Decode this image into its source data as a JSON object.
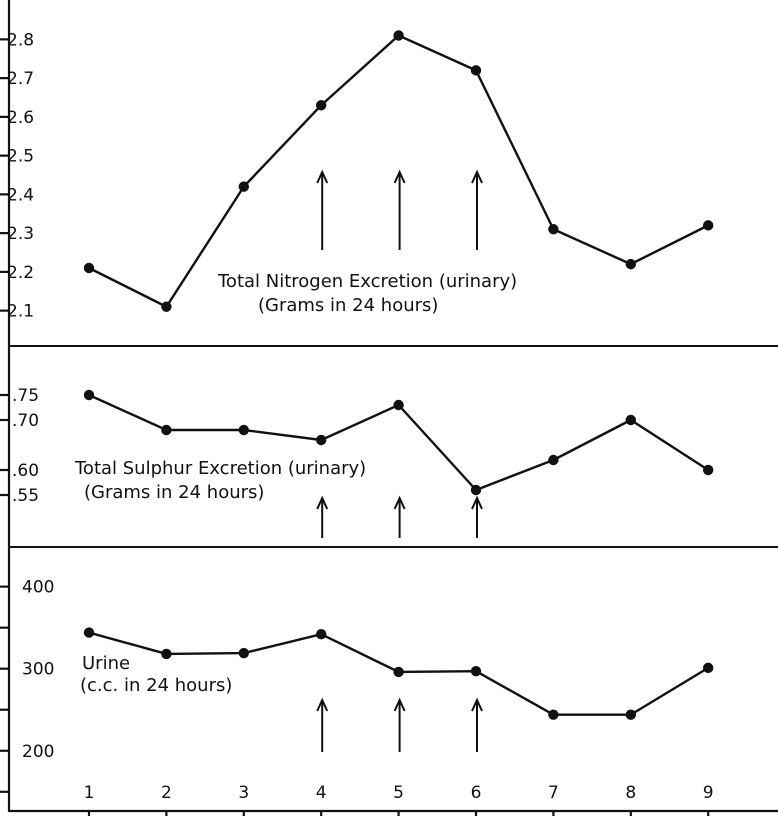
{
  "chart_data": [
    {
      "type": "line",
      "title": "",
      "caption_lines": [
        "Total Nitrogen Excretion (urinary)",
        "(Grams in 24 hours)"
      ],
      "x": [
        1,
        2,
        3,
        4,
        5,
        6,
        7,
        8,
        9
      ],
      "values": [
        2.21,
        2.11,
        2.42,
        2.63,
        2.81,
        2.72,
        2.31,
        2.22,
        2.32
      ],
      "ylim": [
        2.05,
        2.85
      ],
      "yticks": [
        2.1,
        2.2,
        2.3,
        2.4,
        2.5,
        2.6,
        2.7,
        2.8
      ],
      "ytick_labels": [
        "2.1",
        "2.2",
        "2.3",
        "2.4",
        "2.5",
        "2.6",
        "2.7",
        "2.8"
      ],
      "arrows_at": [
        4,
        5,
        6
      ],
      "grid": false
    },
    {
      "type": "line",
      "title": "",
      "caption_lines": [
        "Total Sulphur Excretion (urinary)",
        "(Grams in 24 hours)"
      ],
      "x": [
        1,
        2,
        3,
        4,
        5,
        6,
        7,
        8,
        9
      ],
      "values": [
        0.75,
        0.68,
        0.68,
        0.66,
        0.73,
        0.56,
        0.62,
        0.7,
        0.6
      ],
      "ylim": [
        0.5,
        0.8
      ],
      "yticks": [
        0.55,
        0.6,
        0.7,
        0.75
      ],
      "ytick_labels": [
        ".55",
        ".60",
        ".70",
        ".75"
      ],
      "arrows_at": [
        4,
        5,
        6
      ],
      "grid": false
    },
    {
      "type": "line",
      "title": "",
      "caption_lines": [
        "Urine",
        "(c.c. in 24 hours)"
      ],
      "x": [
        1,
        2,
        3,
        4,
        5,
        6,
        7,
        8,
        9
      ],
      "values": [
        344,
        318,
        319,
        342,
        296,
        297,
        244,
        244,
        301
      ],
      "ylim": [
        140,
        430
      ],
      "yticks": [
        150,
        200,
        250,
        300,
        350,
        400
      ],
      "ytick_labels": [
        "",
        "200",
        "",
        "300",
        "",
        "400"
      ],
      "arrows_at": [
        4,
        5,
        6
      ],
      "grid": false
    }
  ],
  "x_axis": {
    "tick_labels": [
      "1",
      "2",
      "3",
      "4",
      "5",
      "6",
      "7",
      "8",
      "9"
    ]
  }
}
